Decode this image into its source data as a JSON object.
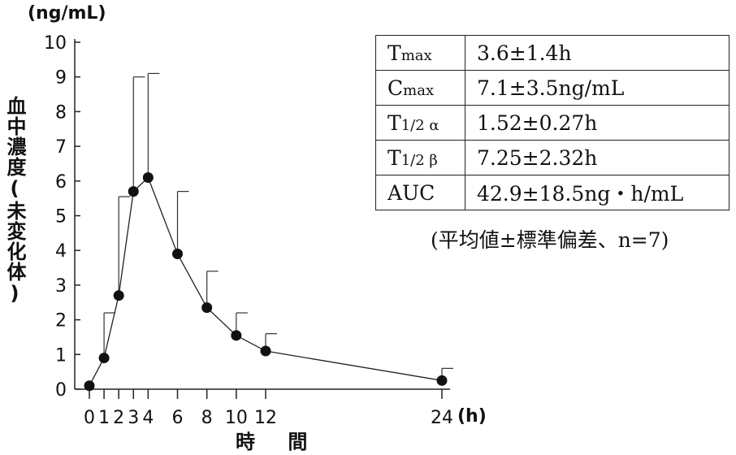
{
  "chart_data": {
    "type": "line",
    "ylabel_unit": "(ng/mL)",
    "ylabel": "血中濃度(未変化体)",
    "xlabel": "時 間",
    "xunit": "(h)",
    "ylim": [
      0,
      10
    ],
    "yticks": [
      "0",
      "1",
      "2",
      "3",
      "4",
      "5",
      "6",
      "7",
      "8",
      "9",
      "10"
    ],
    "xticks": [
      "0",
      "1",
      "2",
      "3",
      "4",
      "6",
      "8",
      "10",
      "12",
      "24"
    ],
    "x": [
      0,
      1,
      2,
      3,
      4,
      6,
      8,
      10,
      12,
      24
    ],
    "y": [
      0.1,
      0.9,
      2.7,
      5.7,
      6.1,
      3.9,
      2.35,
      1.55,
      1.1,
      0.25
    ],
    "error_upper": [
      null,
      2.2,
      5.55,
      9.0,
      9.1,
      5.7,
      3.4,
      2.2,
      1.6,
      0.6
    ],
    "error_bar": "+SD"
  },
  "pk_table": {
    "rows": [
      {
        "param": "T",
        "param_sub": "max",
        "value": "3.6±1.4h"
      },
      {
        "param": "C",
        "param_sub": "max",
        "value": "7.1±3.5ng/mL"
      },
      {
        "param": "T",
        "param_sub": "1/2 α",
        "value": "1.52±0.27h"
      },
      {
        "param": "T",
        "param_sub": "1/2 β",
        "value": "7.25±2.32h"
      },
      {
        "param": "AUC",
        "param_sub": "",
        "value": "42.9±18.5ng・h/mL"
      }
    ],
    "note": "(平均値±標準偏差、n=7)"
  }
}
